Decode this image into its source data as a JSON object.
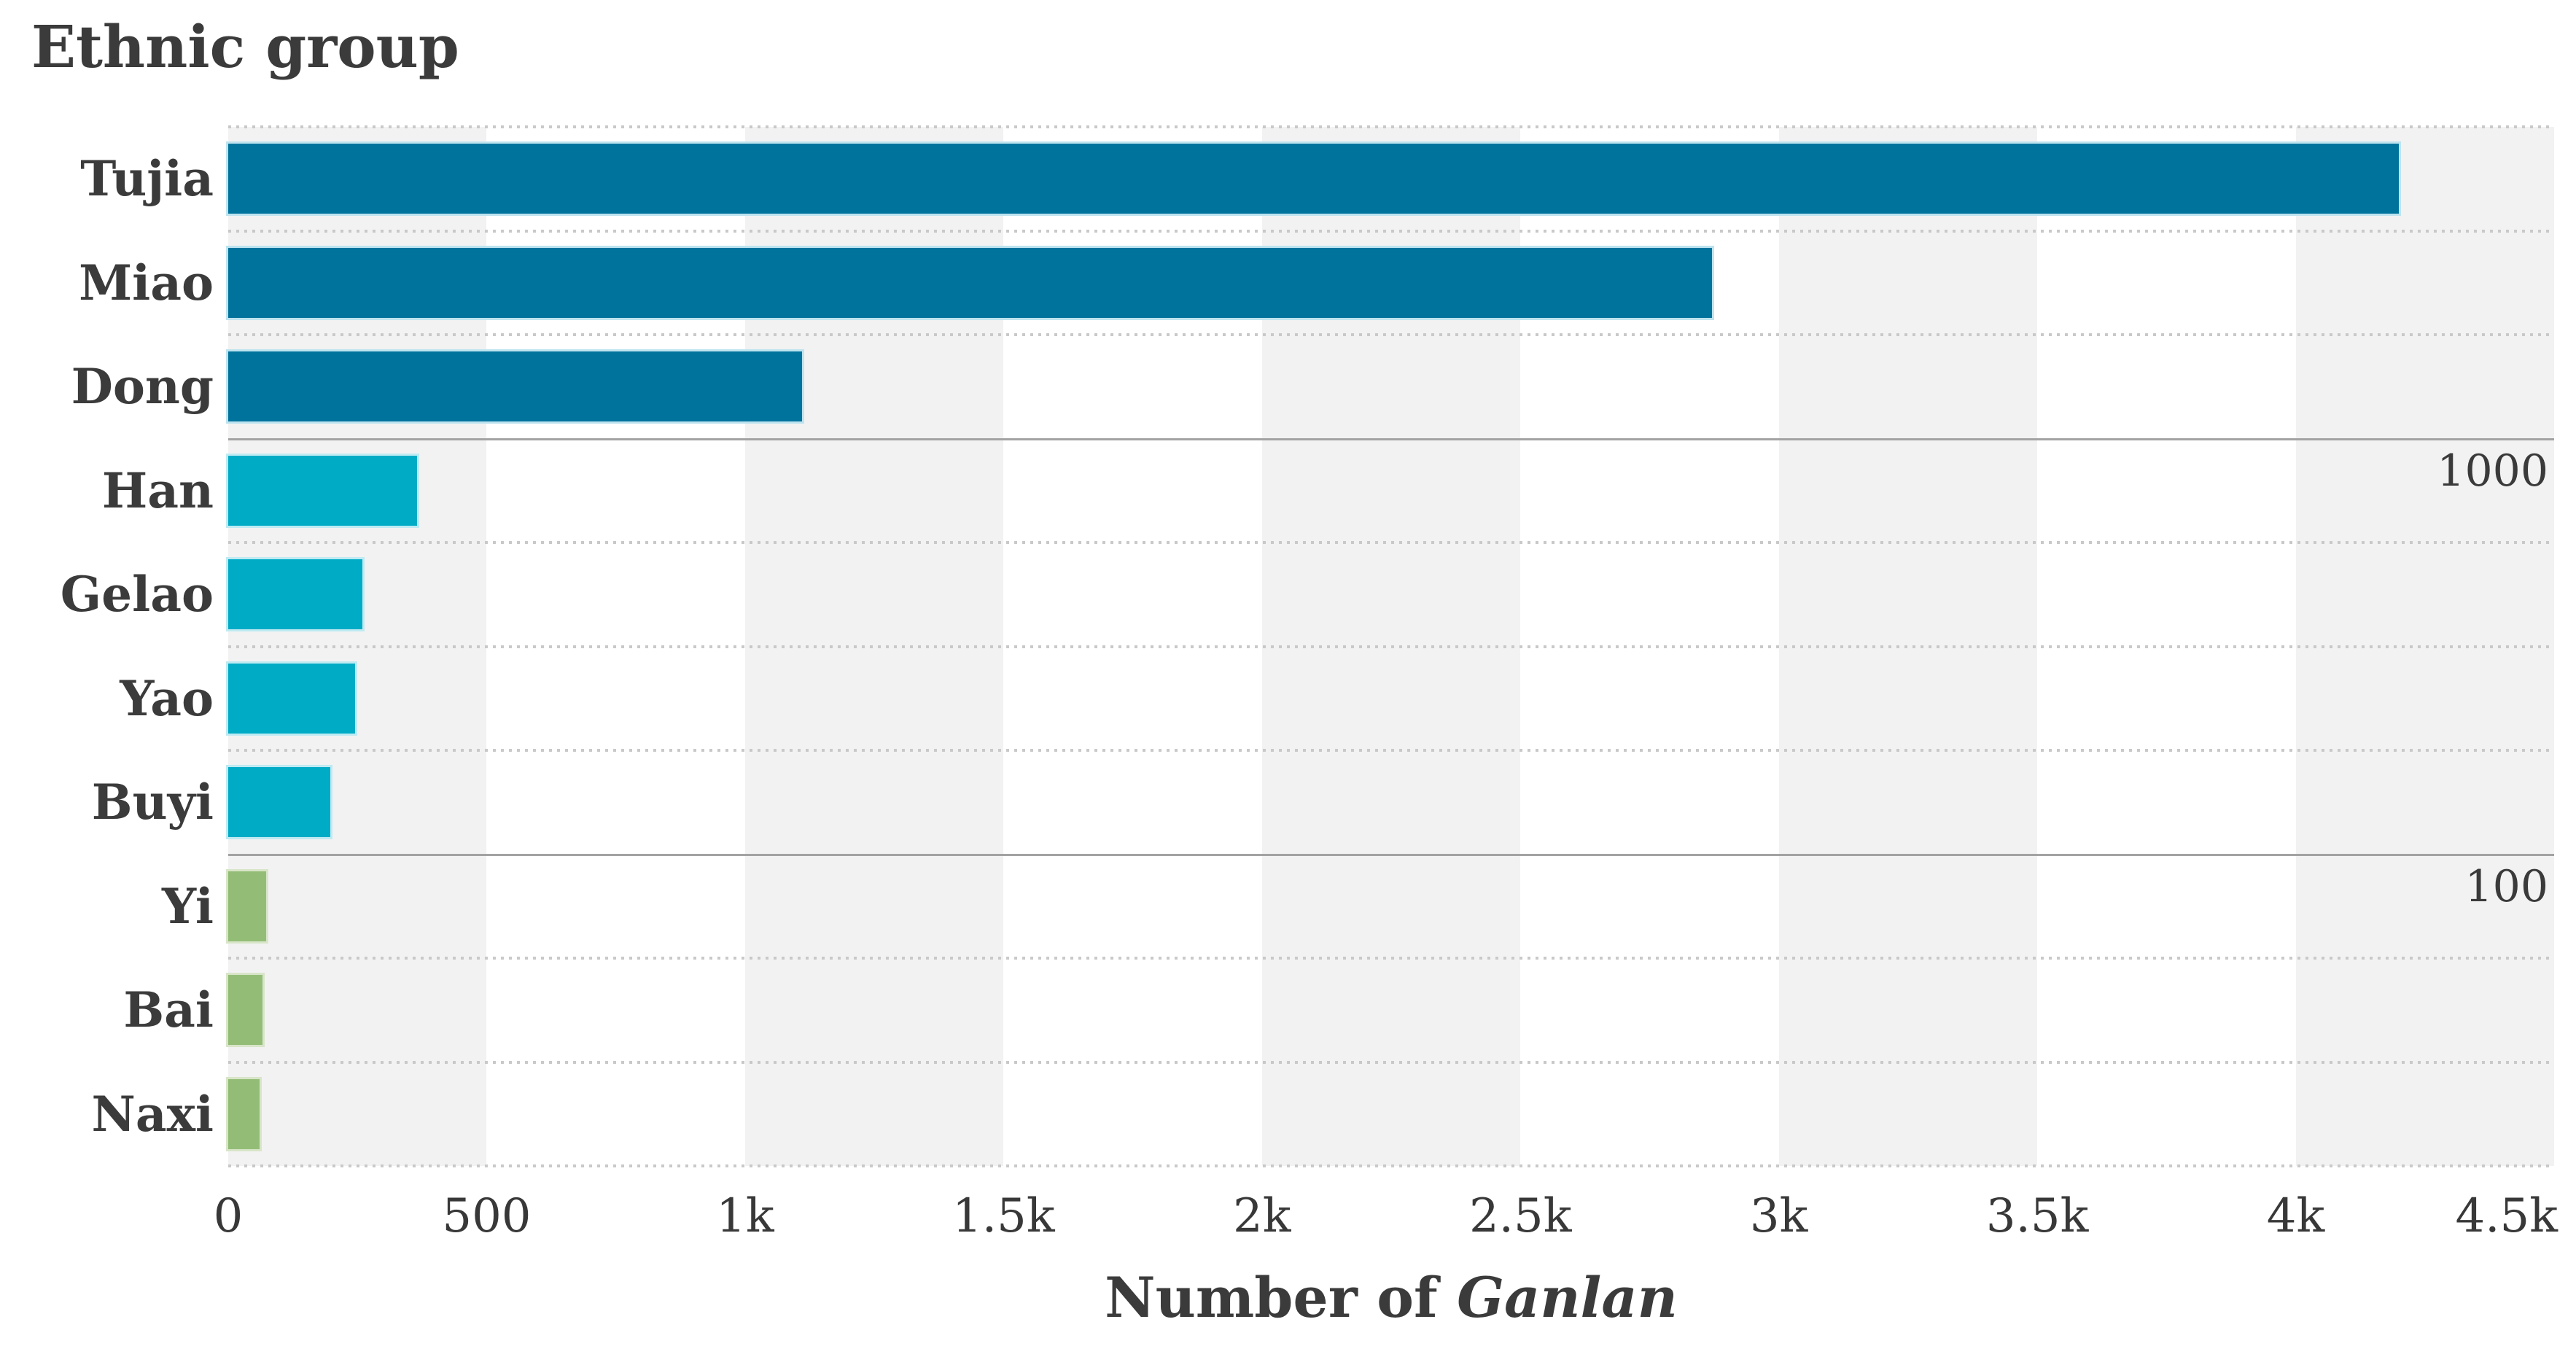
{
  "title": "Ethnic group",
  "chart_data": {
    "type": "bar",
    "orientation": "horizontal",
    "title": "Ethnic group",
    "xlabel_prefix": "Number of ",
    "xlabel_italic": "Ganlan",
    "ylabel": "Ethnic group",
    "categories": [
      "Tujia",
      "Miao",
      "Dong",
      "Han",
      "Gelao",
      "Yao",
      "Buyi",
      "Yi",
      "Bai",
      "Naxi"
    ],
    "values": [
      4200,
      2870,
      1110,
      365,
      260,
      245,
      198,
      73,
      67,
      60
    ],
    "xlim": [
      0,
      4500
    ],
    "x_tick_values": [
      0,
      500,
      1000,
      1500,
      2000,
      2500,
      3000,
      3500,
      4000,
      4500
    ],
    "x_tick_labels": [
      "0",
      "500",
      "1k",
      "1.5k",
      "2k",
      "2.5k",
      "3k",
      "3.5k",
      "4k",
      "4.5k"
    ],
    "annotations": [
      {
        "label": "1000",
        "value": 1000
      },
      {
        "label": "100",
        "value": 100
      }
    ],
    "color_rule": "value > 1000 dark teal; 100 < value <= 1000 cyan; value <= 100 green",
    "colors": {
      "high": "#00739C",
      "mid": "#00ABC6",
      "low": "#93BD77",
      "high_edge": "#BEE3EF",
      "mid_edge": "#BFEAF2",
      "low_edge": "#D8E5C8",
      "stripe_gray": "#F2F2F2",
      "stripe_white": "#FFFFFF",
      "separator_dotted": "#C9C9C9",
      "threshold_line": "#A3A3A3",
      "text": "#3B3B3B"
    },
    "grid": "dotted horizontal row separators; alternating 500-unit vertical background bands; legend off"
  }
}
